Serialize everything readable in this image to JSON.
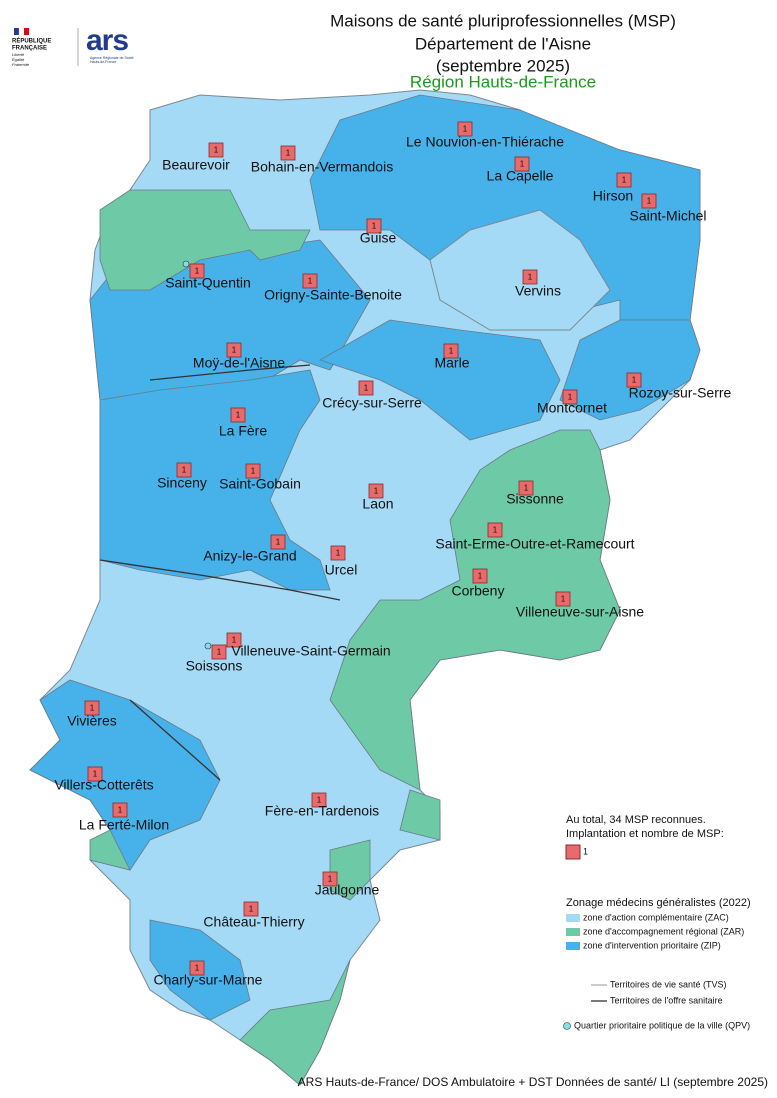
{
  "header": {
    "title_lines": [
      "Maisons de santé pluriprofessionnelles (MSP)",
      "Département de l'Aisne",
      "(septembre 2025)"
    ],
    "region": "Région Hauts-de-France"
  },
  "logos": {
    "republic": [
      "RÉPUBLIQUE",
      "FRANÇAISE"
    ],
    "motto": [
      "Liberté",
      "Égalité",
      "Fraternité"
    ],
    "ars": "ars",
    "ars_subtitle": [
      "Agence Régionale de Santé",
      "Hauts-de-France"
    ]
  },
  "communes": [
    {
      "name": "Beaurevoir",
      "count": 1
    },
    {
      "name": "Bohain-en-Vermandois",
      "count": 1
    },
    {
      "name": "Le Nouvion-en-Thiérache",
      "count": 1
    },
    {
      "name": "La Capelle",
      "count": 1
    },
    {
      "name": "Hirson",
      "count": 1
    },
    {
      "name": "Saint-Michel",
      "count": 1
    },
    {
      "name": "Guise",
      "count": 1
    },
    {
      "name": "Saint-Quentin",
      "count": 1
    },
    {
      "name": "Origny-Sainte-Benoite",
      "count": 1
    },
    {
      "name": "Vervins",
      "count": 1
    },
    {
      "name": "Moÿ-de-l'Aisne",
      "count": 1
    },
    {
      "name": "Marle",
      "count": 1
    },
    {
      "name": "Crécy-sur-Serre",
      "count": 1
    },
    {
      "name": "Rozoy-sur-Serre",
      "count": 1
    },
    {
      "name": "Montcornet",
      "count": 1
    },
    {
      "name": "La Fère",
      "count": 1
    },
    {
      "name": "Sinceny",
      "count": 1
    },
    {
      "name": "Saint-Gobain",
      "count": 1
    },
    {
      "name": "Laon",
      "count": 1
    },
    {
      "name": "Sissonne",
      "count": 1
    },
    {
      "name": "Saint-Erme-Outre-et-Ramecourt",
      "count": 1
    },
    {
      "name": "Anizy-le-Grand",
      "count": 1
    },
    {
      "name": "Urcel",
      "count": 1
    },
    {
      "name": "Corbeny",
      "count": 1
    },
    {
      "name": "Villeneuve-sur-Aisne",
      "count": 1
    },
    {
      "name": "Villeneuve-Saint-Germain",
      "count": 1
    },
    {
      "name": "Soissons",
      "count": 1
    },
    {
      "name": "Vivières",
      "count": 1
    },
    {
      "name": "Villers-Cotterêts",
      "count": 1
    },
    {
      "name": "La Ferté-Milon",
      "count": 1
    },
    {
      "name": "Fère-en-Tardenois",
      "count": 1
    },
    {
      "name": "Jaulgonne",
      "count": 1
    },
    {
      "name": "Château-Thierry",
      "count": 1
    },
    {
      "name": "Charly-sur-Marne",
      "count": 1
    }
  ],
  "legend": {
    "total": "Au total, 34 MSP reconnues.",
    "implantation": "Implantation et nombre de MSP:",
    "marker_label": 1,
    "zonage_title": "Zonage médecins généralistes (2022)",
    "zones": [
      "zone d'action complémentaire (ZAC)",
      "zone d'accompagnement régional (ZAR)",
      "zone d'intervention prioritaire (ZIP)"
    ],
    "lines": [
      "Territoires de vie santé (TVS)",
      "Territoires de l'offre sanitaire"
    ],
    "qpv": "Quartier prioritaire politique de la ville (QPV)"
  },
  "footer": "ARS Hauts-de-France/ DOS Ambulatoire + DST Données de santé/ LI (septembre 2025)"
}
